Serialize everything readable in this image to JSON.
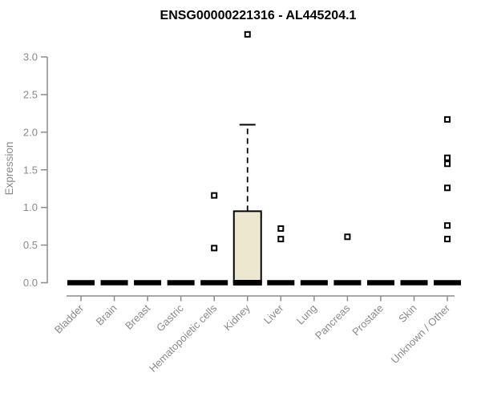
{
  "chart_data": {
    "type": "boxplot",
    "title": "ENSG00000221316 - AL445204.1",
    "ylabel": "Expression",
    "xlabel": "",
    "ylim": [
      0,
      3.3
    ],
    "y_ticks": [
      0,
      0.5,
      1,
      1.5,
      2,
      2.5,
      3
    ],
    "grid": false,
    "legend": "none",
    "categories": [
      "Bladder",
      "Brain",
      "Breast",
      "Gastric",
      "Hematopoietic cells",
      "Kidney",
      "Liver",
      "Lung",
      "Pancreas",
      "Prostate",
      "Skin",
      "Unknown / Other"
    ],
    "series": [
      {
        "category": "Bladder",
        "q1": 0,
        "median": 0,
        "q3": 0,
        "whisker_low": 0,
        "whisker_high": 0,
        "outliers": []
      },
      {
        "category": "Brain",
        "q1": 0,
        "median": 0,
        "q3": 0,
        "whisker_low": 0,
        "whisker_high": 0,
        "outliers": []
      },
      {
        "category": "Breast",
        "q1": 0,
        "median": 0,
        "q3": 0,
        "whisker_low": 0,
        "whisker_high": 0,
        "outliers": []
      },
      {
        "category": "Gastric",
        "q1": 0,
        "median": 0,
        "q3": 0,
        "whisker_low": 0,
        "whisker_high": 0,
        "outliers": []
      },
      {
        "category": "Hematopoietic cells",
        "q1": 0,
        "median": 0,
        "q3": 0,
        "whisker_low": 0,
        "whisker_high": 0,
        "outliers": [
          1.16,
          0.46
        ]
      },
      {
        "category": "Kidney",
        "q1": 0,
        "median": 0,
        "q3": 0.95,
        "whisker_low": 0,
        "whisker_high": 2.1,
        "outliers": [
          3.3
        ]
      },
      {
        "category": "Liver",
        "q1": 0,
        "median": 0,
        "q3": 0,
        "whisker_low": 0,
        "whisker_high": 0,
        "outliers": [
          0.72,
          0.58
        ]
      },
      {
        "category": "Lung",
        "q1": 0,
        "median": 0,
        "q3": 0,
        "whisker_low": 0,
        "whisker_high": 0,
        "outliers": []
      },
      {
        "category": "Pancreas",
        "q1": 0,
        "median": 0,
        "q3": 0,
        "whisker_low": 0,
        "whisker_high": 0,
        "outliers": [
          0.61
        ]
      },
      {
        "category": "Prostate",
        "q1": 0,
        "median": 0,
        "q3": 0,
        "whisker_low": 0,
        "whisker_high": 0,
        "outliers": []
      },
      {
        "category": "Skin",
        "q1": 0,
        "median": 0,
        "q3": 0,
        "whisker_low": 0,
        "whisker_high": 0,
        "outliers": []
      },
      {
        "category": "Unknown / Other",
        "q1": 0,
        "median": 0,
        "q3": 0,
        "whisker_low": 0,
        "whisker_high": 0,
        "outliers": [
          2.17,
          1.66,
          1.58,
          1.26,
          0.76,
          0.58
        ]
      }
    ],
    "colors": {
      "box_fill": "#ECE7CF",
      "box_stroke": "#000000",
      "median": "#000000",
      "outlier_stroke": "#000000",
      "outlier_fill": "#FFFFFF",
      "axis": "#8C8C8C",
      "tick_label": "#8A8A8A",
      "title": "#000000"
    }
  }
}
